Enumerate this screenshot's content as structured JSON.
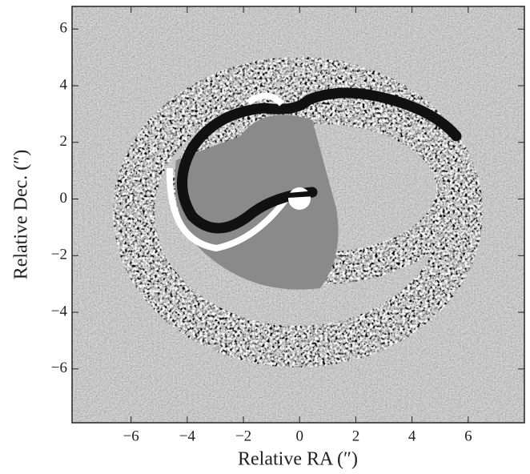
{
  "chart_data": {
    "type": "image",
    "x_label": "Relative RA (″)",
    "y_label": "Relative Dec. (″)",
    "xlim": [
      -8.1,
      8.0
    ],
    "ylim": [
      -7.9,
      6.8
    ],
    "xticks": [
      {
        "value": -6,
        "label": "−6"
      },
      {
        "value": -4,
        "label": "−4"
      },
      {
        "value": -2,
        "label": "−2"
      },
      0,
      2,
      4,
      6
    ],
    "yticks": [
      {
        "value": -6,
        "label": "−6"
      },
      {
        "value": -4,
        "label": "−4"
      },
      {
        "value": -2,
        "label": "−2"
      },
      0,
      2,
      4,
      6
    ]
  }
}
